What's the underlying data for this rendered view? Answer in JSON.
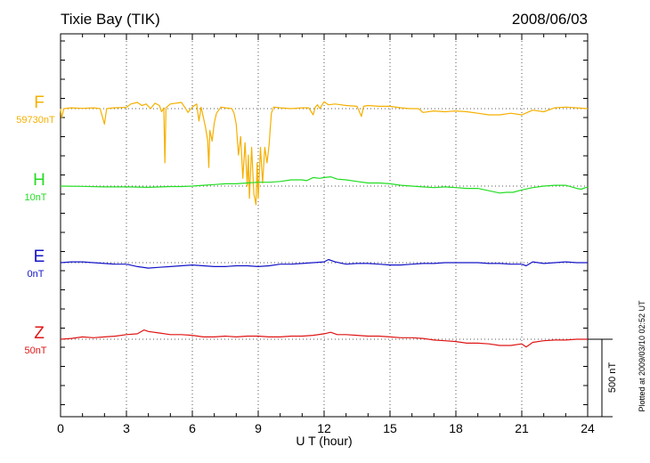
{
  "header": {
    "station": "Tixie Bay (TIK)",
    "date": "2008/06/03"
  },
  "side_note": "Plotted at 2009/03/10 02:52 UT",
  "scale_bar": {
    "label": "500 nT",
    "value_nT": 500
  },
  "chart_data": {
    "type": "line",
    "title": "Tixie Bay (TIK)",
    "date": "2008/06/03",
    "xlabel": "U T (hour)",
    "xlim": [
      0,
      24
    ],
    "xticks": [
      0,
      3,
      6,
      9,
      12,
      15,
      18,
      21,
      24
    ],
    "xtick_labels": [
      "0",
      "3",
      "6",
      "9",
      "12",
      "15",
      "18",
      "21",
      "24"
    ],
    "grid": "dotted vertical lines every 3 hours, dotted baseline per component",
    "scale_nT": 500,
    "series": [
      {
        "name": "F",
        "baseline_label": "59730nT",
        "color": "#f5b000",
        "points": [
          [
            0,
            0
          ],
          [
            0.05,
            -60
          ],
          [
            0.15,
            0
          ],
          [
            0.5,
            5
          ],
          [
            1.0,
            2
          ],
          [
            1.5,
            5
          ],
          [
            1.8,
            0
          ],
          [
            1.9,
            -50
          ],
          [
            2.0,
            -100
          ],
          [
            2.1,
            0
          ],
          [
            2.4,
            5
          ],
          [
            3.0,
            8
          ],
          [
            3.2,
            30
          ],
          [
            3.5,
            40
          ],
          [
            3.7,
            20
          ],
          [
            3.9,
            30
          ],
          [
            4.1,
            0
          ],
          [
            4.3,
            35
          ],
          [
            4.5,
            20
          ],
          [
            4.6,
            -20
          ],
          [
            4.7,
            5
          ],
          [
            4.75,
            -350
          ],
          [
            4.8,
            5
          ],
          [
            5.0,
            30
          ],
          [
            5.5,
            40
          ],
          [
            5.7,
            0
          ],
          [
            5.8,
            -25
          ],
          [
            6.0,
            10
          ],
          [
            6.2,
            30
          ],
          [
            6.3,
            -80
          ],
          [
            6.4,
            10
          ],
          [
            6.6,
            -120
          ],
          [
            6.7,
            -210
          ],
          [
            6.75,
            -380
          ],
          [
            6.8,
            -140
          ],
          [
            6.9,
            -210
          ],
          [
            7.0,
            -90
          ],
          [
            7.1,
            -30
          ],
          [
            7.3,
            10
          ],
          [
            7.5,
            5
          ],
          [
            7.8,
            0
          ],
          [
            7.9,
            -30
          ],
          [
            8.0,
            -100
          ],
          [
            8.1,
            -300
          ],
          [
            8.2,
            -180
          ],
          [
            8.3,
            -450
          ],
          [
            8.4,
            -220
          ],
          [
            8.5,
            -500
          ],
          [
            8.55,
            -300
          ],
          [
            8.6,
            -580
          ],
          [
            8.7,
            -250
          ],
          [
            8.8,
            -550
          ],
          [
            8.9,
            -620
          ],
          [
            8.95,
            -350
          ],
          [
            9.0,
            -580
          ],
          [
            9.1,
            -250
          ],
          [
            9.2,
            -480
          ],
          [
            9.3,
            -250
          ],
          [
            9.4,
            -350
          ],
          [
            9.5,
            -230
          ],
          [
            9.55,
            -120
          ],
          [
            9.6,
            -30
          ],
          [
            9.7,
            10
          ],
          [
            10.0,
            5
          ],
          [
            10.5,
            0
          ],
          [
            11.0,
            5
          ],
          [
            11.3,
            5
          ],
          [
            11.5,
            -40
          ],
          [
            11.6,
            10
          ],
          [
            11.7,
            25
          ],
          [
            11.8,
            0
          ],
          [
            12.0,
            45
          ],
          [
            12.2,
            25
          ],
          [
            12.5,
            30
          ],
          [
            13.0,
            20
          ],
          [
            13.5,
            15
          ],
          [
            13.7,
            -50
          ],
          [
            13.8,
            15
          ],
          [
            14.0,
            20
          ],
          [
            14.5,
            15
          ],
          [
            15.0,
            15
          ],
          [
            15.5,
            5
          ],
          [
            15.9,
            0
          ],
          [
            16.3,
            0
          ],
          [
            16.5,
            -25
          ],
          [
            17.0,
            -15
          ],
          [
            17.5,
            -20
          ],
          [
            18.0,
            -15
          ],
          [
            18.5,
            -20
          ],
          [
            19.0,
            -30
          ],
          [
            19.5,
            -40
          ],
          [
            20.0,
            -40
          ],
          [
            20.5,
            -30
          ],
          [
            21.0,
            -40
          ],
          [
            21.5,
            -10
          ],
          [
            22.0,
            -20
          ],
          [
            22.5,
            5
          ],
          [
            23.0,
            10
          ],
          [
            23.5,
            5
          ],
          [
            24.0,
            0
          ]
        ]
      },
      {
        "name": "H",
        "baseline_label": "10nT",
        "color": "#22dd22",
        "points": [
          [
            0,
            0
          ],
          [
            1.0,
            -2
          ],
          [
            2.0,
            -5
          ],
          [
            3.0,
            -5
          ],
          [
            4.0,
            -8
          ],
          [
            5.0,
            -3
          ],
          [
            5.5,
            -3
          ],
          [
            6.0,
            0
          ],
          [
            6.5,
            5
          ],
          [
            7.0,
            10
          ],
          [
            7.5,
            15
          ],
          [
            8.0,
            15
          ],
          [
            8.5,
            20
          ],
          [
            9.0,
            25
          ],
          [
            9.5,
            25
          ],
          [
            10.0,
            30
          ],
          [
            10.5,
            40
          ],
          [
            11.0,
            40
          ],
          [
            11.2,
            35
          ],
          [
            11.5,
            55
          ],
          [
            11.8,
            50
          ],
          [
            12.0,
            55
          ],
          [
            12.3,
            60
          ],
          [
            12.6,
            45
          ],
          [
            13.0,
            40
          ],
          [
            13.5,
            30
          ],
          [
            14.0,
            20
          ],
          [
            14.5,
            20
          ],
          [
            15.0,
            15
          ],
          [
            15.5,
            5
          ],
          [
            16.0,
            0
          ],
          [
            16.5,
            -5
          ],
          [
            17.0,
            -10
          ],
          [
            17.5,
            -5
          ],
          [
            18.0,
            -10
          ],
          [
            18.5,
            -15
          ],
          [
            19.0,
            -15
          ],
          [
            19.5,
            -30
          ],
          [
            20.0,
            -45
          ],
          [
            20.3,
            -40
          ],
          [
            20.6,
            -40
          ],
          [
            21.0,
            -25
          ],
          [
            21.5,
            -10
          ],
          [
            22.0,
            0
          ],
          [
            22.5,
            5
          ],
          [
            23.0,
            5
          ],
          [
            23.5,
            -15
          ],
          [
            23.7,
            -20
          ],
          [
            24.0,
            -5
          ]
        ]
      },
      {
        "name": "E",
        "baseline_label": "0nT",
        "color": "#1414c8",
        "points": [
          [
            0,
            0
          ],
          [
            0.5,
            5
          ],
          [
            1.0,
            5
          ],
          [
            1.5,
            0
          ],
          [
            2.0,
            -5
          ],
          [
            2.5,
            -10
          ],
          [
            3.0,
            -10
          ],
          [
            3.5,
            -25
          ],
          [
            4.0,
            -35
          ],
          [
            4.5,
            -30
          ],
          [
            5.0,
            -25
          ],
          [
            5.5,
            -20
          ],
          [
            6.0,
            -15
          ],
          [
            6.5,
            -20
          ],
          [
            7.0,
            -25
          ],
          [
            7.5,
            -25
          ],
          [
            8.0,
            -20
          ],
          [
            8.5,
            -20
          ],
          [
            9.0,
            -25
          ],
          [
            9.5,
            -20
          ],
          [
            10.0,
            -10
          ],
          [
            10.5,
            -10
          ],
          [
            11.0,
            -5
          ],
          [
            11.5,
            0
          ],
          [
            12.0,
            5
          ],
          [
            12.2,
            20
          ],
          [
            12.5,
            5
          ],
          [
            13.0,
            -10
          ],
          [
            13.5,
            -5
          ],
          [
            14.0,
            -5
          ],
          [
            14.5,
            -10
          ],
          [
            15.0,
            -15
          ],
          [
            15.5,
            -15
          ],
          [
            16.0,
            -10
          ],
          [
            16.5,
            -5
          ],
          [
            17.0,
            -5
          ],
          [
            17.5,
            0
          ],
          [
            18.0,
            0
          ],
          [
            18.5,
            0
          ],
          [
            19.0,
            0
          ],
          [
            19.5,
            -5
          ],
          [
            20.0,
            -5
          ],
          [
            20.5,
            -10
          ],
          [
            21.0,
            -10
          ],
          [
            21.2,
            -20
          ],
          [
            21.5,
            5
          ],
          [
            22.0,
            -5
          ],
          [
            22.5,
            0
          ],
          [
            23.0,
            5
          ],
          [
            23.5,
            0
          ],
          [
            24.0,
            0
          ]
        ]
      },
      {
        "name": "Z",
        "baseline_label": "50nT",
        "color": "#e01414",
        "points": [
          [
            0,
            0
          ],
          [
            0.5,
            5
          ],
          [
            1.0,
            15
          ],
          [
            1.5,
            10
          ],
          [
            2.0,
            15
          ],
          [
            2.5,
            20
          ],
          [
            3.0,
            30
          ],
          [
            3.5,
            35
          ],
          [
            3.8,
            60
          ],
          [
            4.0,
            50
          ],
          [
            4.5,
            40
          ],
          [
            5.0,
            30
          ],
          [
            5.5,
            30
          ],
          [
            6.0,
            25
          ],
          [
            6.5,
            15
          ],
          [
            7.0,
            15
          ],
          [
            7.5,
            20
          ],
          [
            8.0,
            15
          ],
          [
            8.5,
            20
          ],
          [
            9.0,
            20
          ],
          [
            9.5,
            15
          ],
          [
            10.0,
            15
          ],
          [
            10.5,
            20
          ],
          [
            11.0,
            20
          ],
          [
            11.5,
            25
          ],
          [
            12.0,
            35
          ],
          [
            12.3,
            45
          ],
          [
            12.6,
            30
          ],
          [
            13.0,
            30
          ],
          [
            13.5,
            25
          ],
          [
            14.0,
            20
          ],
          [
            14.5,
            20
          ],
          [
            15.0,
            15
          ],
          [
            15.5,
            10
          ],
          [
            16.0,
            10
          ],
          [
            16.5,
            5
          ],
          [
            17.0,
            -5
          ],
          [
            17.5,
            -10
          ],
          [
            18.0,
            -15
          ],
          [
            18.5,
            -25
          ],
          [
            19.0,
            -25
          ],
          [
            19.5,
            -30
          ],
          [
            20.0,
            -40
          ],
          [
            20.5,
            -40
          ],
          [
            21.0,
            -30
          ],
          [
            21.2,
            -50
          ],
          [
            21.5,
            -20
          ],
          [
            22.0,
            -10
          ],
          [
            22.5,
            -5
          ],
          [
            23.0,
            -5
          ],
          [
            23.5,
            0
          ],
          [
            24.0,
            0
          ]
        ]
      }
    ]
  }
}
